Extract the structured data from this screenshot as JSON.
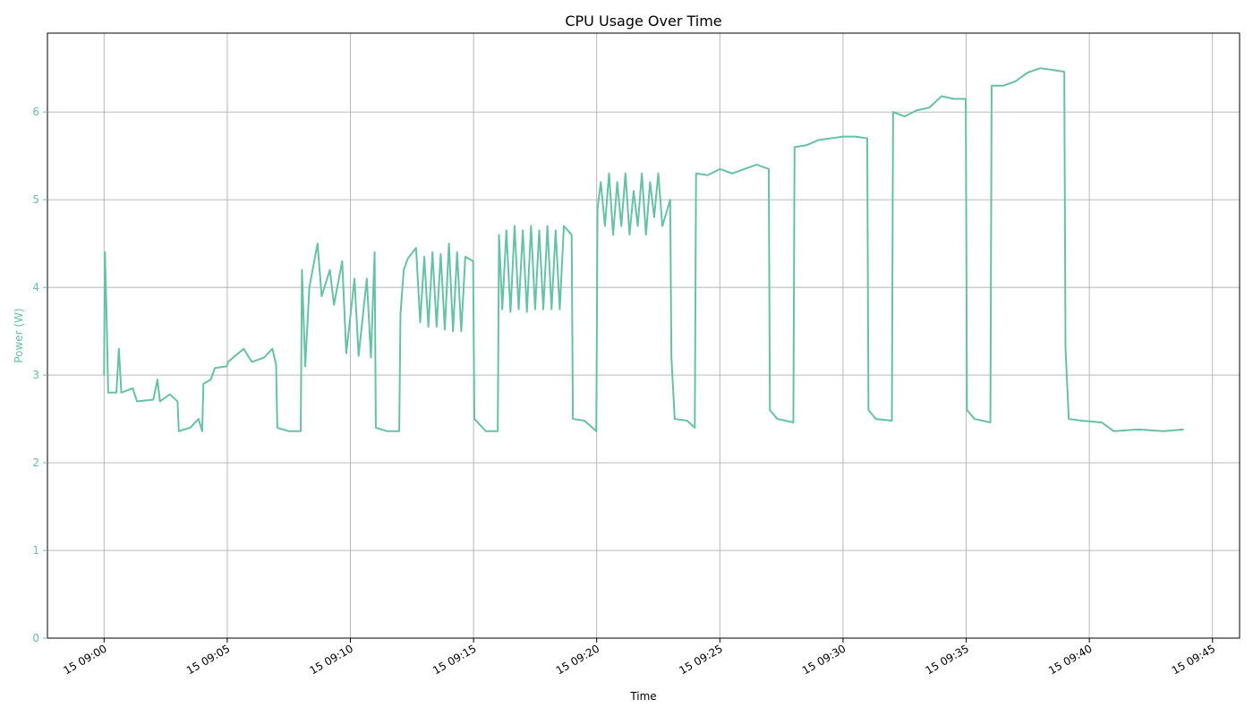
{
  "chart_data": {
    "type": "line",
    "title": "CPU Usage Over Time",
    "xlabel": "Time",
    "ylabel": "Power (W)",
    "xlim": [
      "15 08:57:42",
      "15 09:46:06"
    ],
    "ylim": [
      0,
      6.9
    ],
    "grid": true,
    "legend": "none",
    "line_color": "#66c2a5",
    "axis_label_color": "#66c2a5",
    "x_ticks": [
      {
        "t": "15 09:00",
        "label": "15 09:00"
      },
      {
        "t": "15 09:05",
        "label": "15 09:05"
      },
      {
        "t": "15 09:10",
        "label": "15 09:10"
      },
      {
        "t": "15 09:15",
        "label": "15 09:15"
      },
      {
        "t": "15 09:20",
        "label": "15 09:20"
      },
      {
        "t": "15 09:25",
        "label": "15 09:25"
      },
      {
        "t": "15 09:30",
        "label": "15 09:30"
      },
      {
        "t": "15 09:35",
        "label": "15 09:35"
      },
      {
        "t": "15 09:40",
        "label": "15 09:40"
      },
      {
        "t": "15 09:45",
        "label": "15 09:45"
      }
    ],
    "y_ticks": [
      0,
      1,
      2,
      3,
      4,
      5,
      6
    ],
    "series": [
      {
        "points": [
          [
            "15 09:00:00",
            3.0
          ],
          [
            "15 09:00:02",
            4.4
          ],
          [
            "15 09:00:06",
            3.7
          ],
          [
            "15 09:00:10",
            2.8
          ],
          [
            "15 09:00:30",
            2.8
          ],
          [
            "15 09:00:36",
            3.3
          ],
          [
            "15 09:00:42",
            2.8
          ],
          [
            "15 09:01:10",
            2.85
          ],
          [
            "15 09:01:20",
            2.7
          ],
          [
            "15 09:02:00",
            2.72
          ],
          [
            "15 09:02:10",
            2.95
          ],
          [
            "15 09:02:16",
            2.7
          ],
          [
            "15 09:02:40",
            2.78
          ],
          [
            "15 09:02:59",
            2.7
          ],
          [
            "15 09:03:02",
            2.36
          ],
          [
            "15 09:03:30",
            2.4
          ],
          [
            "15 09:03:50",
            2.5
          ],
          [
            "15 09:03:59",
            2.36
          ],
          [
            "15 09:04:02",
            2.9
          ],
          [
            "15 09:04:20",
            2.95
          ],
          [
            "15 09:04:30",
            3.08
          ],
          [
            "15 09:04:59",
            3.1
          ],
          [
            "15 09:05:02",
            3.15
          ],
          [
            "15 09:05:40",
            3.3
          ],
          [
            "15 09:06:00",
            3.15
          ],
          [
            "15 09:06:30",
            3.2
          ],
          [
            "15 09:06:50",
            3.3
          ],
          [
            "15 09:06:59",
            3.12
          ],
          [
            "15 09:07:02",
            2.4
          ],
          [
            "15 09:07:30",
            2.36
          ],
          [
            "15 09:07:59",
            2.36
          ],
          [
            "15 09:08:02",
            4.2
          ],
          [
            "15 09:08:10",
            3.1
          ],
          [
            "15 09:08:20",
            4.0
          ],
          [
            "15 09:08:40",
            4.5
          ],
          [
            "15 09:08:50",
            3.9
          ],
          [
            "15 09:09:10",
            4.2
          ],
          [
            "15 09:09:20",
            3.8
          ],
          [
            "15 09:09:40",
            4.3
          ],
          [
            "15 09:09:50",
            3.25
          ],
          [
            "15 09:10:10",
            4.1
          ],
          [
            "15 09:10:20",
            3.22
          ],
          [
            "15 09:10:40",
            4.1
          ],
          [
            "15 09:10:50",
            3.2
          ],
          [
            "15 09:10:59",
            4.4
          ],
          [
            "15 09:11:02",
            2.4
          ],
          [
            "15 09:11:30",
            2.36
          ],
          [
            "15 09:11:59",
            2.36
          ],
          [
            "15 09:12:02",
            3.7
          ],
          [
            "15 09:12:10",
            4.2
          ],
          [
            "15 09:12:20",
            4.33
          ],
          [
            "15 09:12:40",
            4.45
          ],
          [
            "15 09:12:50",
            3.6
          ],
          [
            "15 09:13:00",
            4.35
          ],
          [
            "15 09:13:10",
            3.55
          ],
          [
            "15 09:13:20",
            4.4
          ],
          [
            "15 09:13:30",
            3.55
          ],
          [
            "15 09:13:40",
            4.38
          ],
          [
            "15 09:13:50",
            3.52
          ],
          [
            "15 09:14:00",
            4.5
          ],
          [
            "15 09:14:10",
            3.5
          ],
          [
            "15 09:14:20",
            4.4
          ],
          [
            "15 09:14:30",
            3.5
          ],
          [
            "15 09:14:40",
            4.35
          ],
          [
            "15 09:14:59",
            4.3
          ],
          [
            "15 09:15:02",
            2.5
          ],
          [
            "15 09:15:30",
            2.36
          ],
          [
            "15 09:15:59",
            2.36
          ],
          [
            "15 09:16:02",
            4.6
          ],
          [
            "15 09:16:10",
            3.75
          ],
          [
            "15 09:16:20",
            4.65
          ],
          [
            "15 09:16:30",
            3.72
          ],
          [
            "15 09:16:40",
            4.7
          ],
          [
            "15 09:16:50",
            3.75
          ],
          [
            "15 09:17:00",
            4.65
          ],
          [
            "15 09:17:10",
            3.72
          ],
          [
            "15 09:17:20",
            4.7
          ],
          [
            "15 09:17:30",
            3.75
          ],
          [
            "15 09:17:40",
            4.65
          ],
          [
            "15 09:17:50",
            3.75
          ],
          [
            "15 09:18:00",
            4.7
          ],
          [
            "15 09:18:10",
            3.75
          ],
          [
            "15 09:18:20",
            4.65
          ],
          [
            "15 09:18:30",
            3.75
          ],
          [
            "15 09:18:40",
            4.7
          ],
          [
            "15 09:18:59",
            4.6
          ],
          [
            "15 09:19:02",
            2.5
          ],
          [
            "15 09:19:30",
            2.48
          ],
          [
            "15 09:19:59",
            2.36
          ],
          [
            "15 09:20:02",
            4.9
          ],
          [
            "15 09:20:10",
            5.2
          ],
          [
            "15 09:20:20",
            4.7
          ],
          [
            "15 09:20:30",
            5.3
          ],
          [
            "15 09:20:40",
            4.6
          ],
          [
            "15 09:20:50",
            5.2
          ],
          [
            "15 09:21:00",
            4.7
          ],
          [
            "15 09:21:10",
            5.3
          ],
          [
            "15 09:21:20",
            4.6
          ],
          [
            "15 09:21:30",
            5.1
          ],
          [
            "15 09:21:40",
            4.7
          ],
          [
            "15 09:21:50",
            5.3
          ],
          [
            "15 09:22:00",
            4.6
          ],
          [
            "15 09:22:10",
            5.2
          ],
          [
            "15 09:22:20",
            4.8
          ],
          [
            "15 09:22:30",
            5.3
          ],
          [
            "15 09:22:40",
            4.7
          ],
          [
            "15 09:22:59",
            5.0
          ],
          [
            "15 09:23:02",
            3.2
          ],
          [
            "15 09:23:10",
            2.5
          ],
          [
            "15 09:23:40",
            2.48
          ],
          [
            "15 09:23:59",
            2.4
          ],
          [
            "15 09:24:02",
            5.3
          ],
          [
            "15 09:24:30",
            5.28
          ],
          [
            "15 09:25:00",
            5.35
          ],
          [
            "15 09:25:30",
            5.3
          ],
          [
            "15 09:26:00",
            5.35
          ],
          [
            "15 09:26:30",
            5.4
          ],
          [
            "15 09:26:59",
            5.35
          ],
          [
            "15 09:27:02",
            2.6
          ],
          [
            "15 09:27:20",
            2.5
          ],
          [
            "15 09:27:59",
            2.46
          ],
          [
            "15 09:28:02",
            5.6
          ],
          [
            "15 09:28:30",
            5.62
          ],
          [
            "15 09:29:00",
            5.68
          ],
          [
            "15 09:29:30",
            5.7
          ],
          [
            "15 09:30:00",
            5.72
          ],
          [
            "15 09:30:30",
            5.72
          ],
          [
            "15 09:30:59",
            5.7
          ],
          [
            "15 09:31:02",
            2.6
          ],
          [
            "15 09:31:20",
            2.5
          ],
          [
            "15 09:31:59",
            2.48
          ],
          [
            "15 09:32:02",
            6.0
          ],
          [
            "15 09:32:30",
            5.95
          ],
          [
            "15 09:33:00",
            6.02
          ],
          [
            "15 09:33:30",
            6.05
          ],
          [
            "15 09:34:00",
            6.18
          ],
          [
            "15 09:34:30",
            6.15
          ],
          [
            "15 09:34:59",
            6.15
          ],
          [
            "15 09:35:02",
            2.6
          ],
          [
            "15 09:35:20",
            2.5
          ],
          [
            "15 09:35:59",
            2.46
          ],
          [
            "15 09:36:02",
            6.3
          ],
          [
            "15 09:36:30",
            6.3
          ],
          [
            "15 09:37:00",
            6.35
          ],
          [
            "15 09:37:30",
            6.45
          ],
          [
            "15 09:38:00",
            6.5
          ],
          [
            "15 09:38:30",
            6.48
          ],
          [
            "15 09:38:59",
            6.46
          ],
          [
            "15 09:39:02",
            3.3
          ],
          [
            "15 09:39:10",
            2.5
          ],
          [
            "15 09:39:40",
            2.48
          ],
          [
            "15 09:40:30",
            2.46
          ],
          [
            "15 09:41:00",
            2.36
          ],
          [
            "15 09:42:00",
            2.38
          ],
          [
            "15 09:43:00",
            2.36
          ],
          [
            "15 09:43:50",
            2.38
          ]
        ]
      }
    ]
  }
}
